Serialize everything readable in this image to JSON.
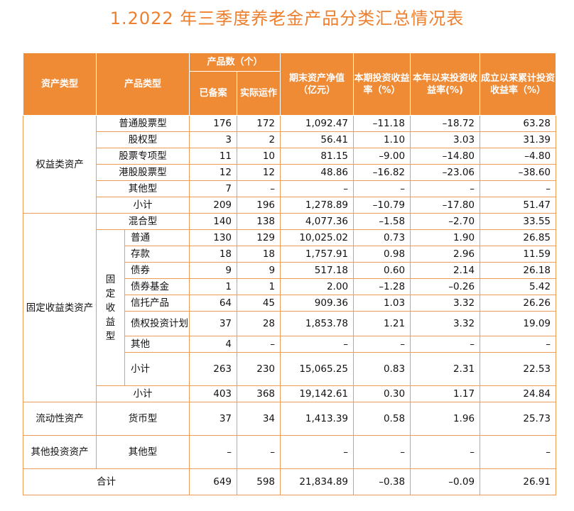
{
  "title": "1.2022 年三季度养老金产品分类汇总情况表",
  "headers": {
    "asset_type": "资产类型",
    "product_type": "产品类型",
    "product_count": "产品数（个）",
    "filed": "已备案",
    "operating": "实际运作",
    "nav": "期末资产净值（亿元）",
    "period_return": "本期投资收益率（%）",
    "ytd_return": "本年以来投资收益率(%)",
    "cum_return": "成立以来累计投资收益率（%）"
  },
  "groups": {
    "equity": "权益类资产",
    "fixed": "固定收益类资产",
    "fixed_sub": "固定收益型",
    "liquidity": "流动性资产",
    "other": "其他投资资产"
  },
  "rows": [
    {
      "label": "普通股票型",
      "filed": "176",
      "operating": "172",
      "nav": "1,092.47",
      "period": "–11.18",
      "ytd": "–18.72",
      "cum": "63.28"
    },
    {
      "label": "股权型",
      "filed": "3",
      "operating": "2",
      "nav": "56.41",
      "period": "1.10",
      "ytd": "3.03",
      "cum": "31.39"
    },
    {
      "label": "股票专项型",
      "filed": "11",
      "operating": "10",
      "nav": "81.15",
      "period": "–9.00",
      "ytd": "–14.80",
      "cum": "–4.80"
    },
    {
      "label": "港股股票型",
      "filed": "12",
      "operating": "12",
      "nav": "48.86",
      "period": "–16.82",
      "ytd": "–23.06",
      "cum": "–38.60"
    },
    {
      "label": "其他型",
      "filed": "7",
      "operating": "–",
      "nav": "–",
      "period": "–",
      "ytd": "–",
      "cum": "–"
    },
    {
      "label": "小计",
      "filed": "209",
      "operating": "196",
      "nav": "1,278.89",
      "period": "–10.79",
      "ytd": "–17.80",
      "cum": "51.47"
    },
    {
      "label": "混合型",
      "filed": "140",
      "operating": "138",
      "nav": "4,077.36",
      "period": "–1.58",
      "ytd": "–2.70",
      "cum": "33.55"
    },
    {
      "label": "普通",
      "filed": "130",
      "operating": "129",
      "nav": "10,025.02",
      "period": "0.73",
      "ytd": "1.90",
      "cum": "26.85"
    },
    {
      "label": "存款",
      "filed": "18",
      "operating": "18",
      "nav": "1,757.91",
      "period": "0.98",
      "ytd": "2.96",
      "cum": "11.59"
    },
    {
      "label": "债券",
      "filed": "9",
      "operating": "9",
      "nav": "517.18",
      "period": "0.60",
      "ytd": "2.14",
      "cum": "26.18"
    },
    {
      "label": "债券基金",
      "filed": "1",
      "operating": "1",
      "nav": "2.00",
      "period": "–1.28",
      "ytd": "–0.26",
      "cum": "5.42"
    },
    {
      "label": "信托产品",
      "filed": "64",
      "operating": "45",
      "nav": "909.36",
      "period": "1.03",
      "ytd": "3.32",
      "cum": "26.26"
    },
    {
      "label": "债权投资计划",
      "filed": "37",
      "operating": "28",
      "nav": "1,853.78",
      "period": "1.21",
      "ytd": "3.32",
      "cum": "19.09"
    },
    {
      "label": "其他",
      "filed": "4",
      "operating": "–",
      "nav": "–",
      "period": "–",
      "ytd": "–",
      "cum": "–"
    },
    {
      "label": "小计",
      "filed": "263",
      "operating": "230",
      "nav": "15,065.25",
      "period": "0.83",
      "ytd": "2.31",
      "cum": "22.53"
    },
    {
      "label": "小计",
      "filed": "403",
      "operating": "368",
      "nav": "19,142.61",
      "period": "0.30",
      "ytd": "1.17",
      "cum": "24.84"
    },
    {
      "label": "货币型",
      "filed": "37",
      "operating": "34",
      "nav": "1,413.39",
      "period": "0.58",
      "ytd": "1.96",
      "cum": "25.73"
    },
    {
      "label": "其他型",
      "filed": "–",
      "operating": "–",
      "nav": "–",
      "period": "–",
      "ytd": "–",
      "cum": "–"
    },
    {
      "label": "合计",
      "filed": "649",
      "operating": "598",
      "nav": "21,834.89",
      "period": "–0.38",
      "ytd": "–0.09",
      "cum": "26.91"
    }
  ]
}
